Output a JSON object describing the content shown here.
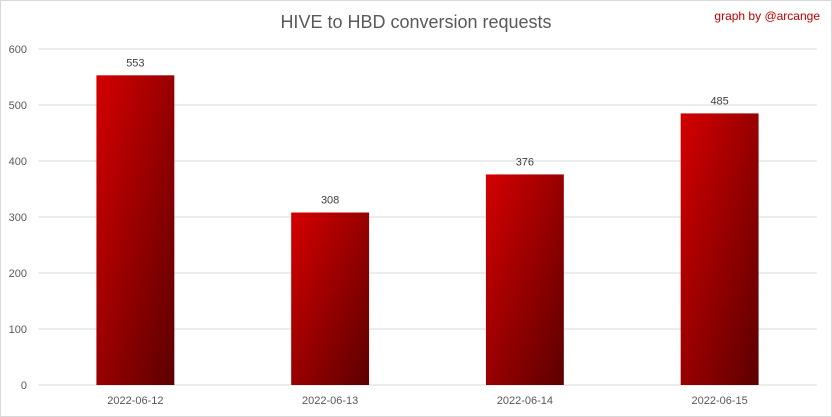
{
  "chart_data": {
    "type": "bar",
    "title": "HIVE to HBD conversion requests",
    "credit": "graph by @arcange",
    "categories": [
      "2022-06-12",
      "2022-06-13",
      "2022-06-14",
      "2022-06-15"
    ],
    "values": [
      553,
      308,
      376,
      485
    ],
    "data_labels": [
      "553",
      "308",
      "376",
      "485"
    ],
    "ylim": [
      0,
      600
    ],
    "yticks": [
      0,
      100,
      200,
      300,
      400,
      500,
      600
    ],
    "xlabel": "",
    "ylabel": "",
    "grid": true,
    "legend": "none",
    "colors": {
      "bar_top": "#d40000",
      "bar_bottom": "#5c0000",
      "grid": "#d9d9d9",
      "axis_text": "#595959",
      "credit": "#c00000"
    }
  }
}
